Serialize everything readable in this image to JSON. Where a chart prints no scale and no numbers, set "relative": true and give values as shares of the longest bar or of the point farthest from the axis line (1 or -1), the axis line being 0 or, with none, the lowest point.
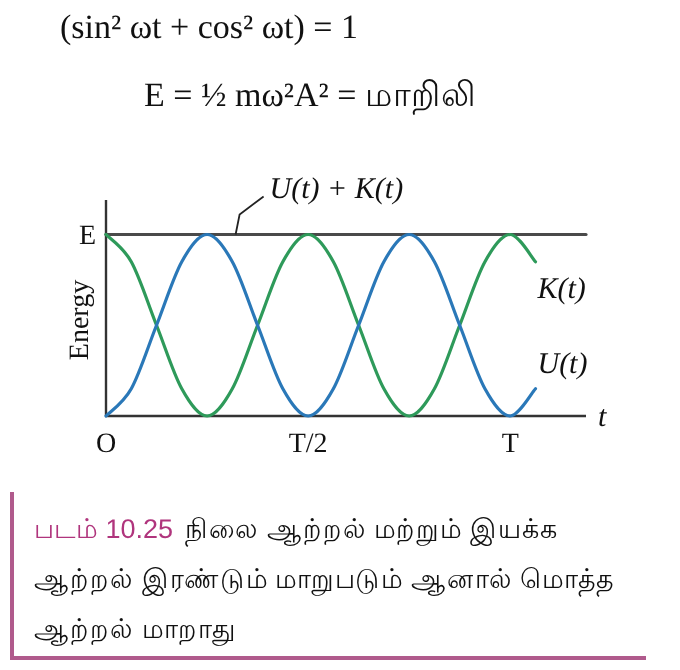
{
  "chart_data": {
    "type": "line",
    "relative": true,
    "xlabel": "t",
    "ylabel": "Energy",
    "annotations": [
      "(sin² ωt + cos² ωt) = 1",
      "E = ½ mω²A² = மாறிலி",
      "படம் 10.25",
      "நிலை ஆற்றல் மற்றும் இயக்க ஆற்றல் இரண்டும் மாறுபடும் ஆனால் மொத்த ஆற்றல் மாறாது",
      "O",
      "T/2",
      "T",
      "E"
    ],
    "categories": [
      null,
      null,
      null,
      null,
      null,
      null,
      null,
      null,
      null,
      null,
      null,
      null,
      null,
      null,
      null,
      null,
      null,
      null,
      null,
      null
    ],
    "marker": "none",
    "line_style": "solid",
    "series": [
      {
        "name": "U(t) + K(t)",
        "color": "#4a4a4a",
        "values": [
          1,
          1,
          1,
          1,
          1,
          1,
          1,
          1,
          1,
          1,
          1,
          1,
          1,
          1,
          1,
          1,
          1,
          1,
          1,
          1
        ]
      },
      {
        "name": "K(t)",
        "color": "#2e9a5a",
        "values": [
          1,
          0.85,
          0.5,
          0.15,
          0,
          0.15,
          0.5,
          0.85,
          1,
          0.85,
          0.5,
          0.15,
          0,
          0.15,
          0.5,
          0.85,
          1,
          0.85,
          null,
          null
        ]
      },
      {
        "name": "U(t)",
        "color": "#2a78b8",
        "values": [
          0,
          0.15,
          0.5,
          0.85,
          1,
          0.85,
          0.5,
          0.15,
          0,
          0.15,
          0.5,
          0.85,
          1,
          0.85,
          0.5,
          0.15,
          0,
          0.15,
          null,
          null
        ]
      }
    ]
  }
}
